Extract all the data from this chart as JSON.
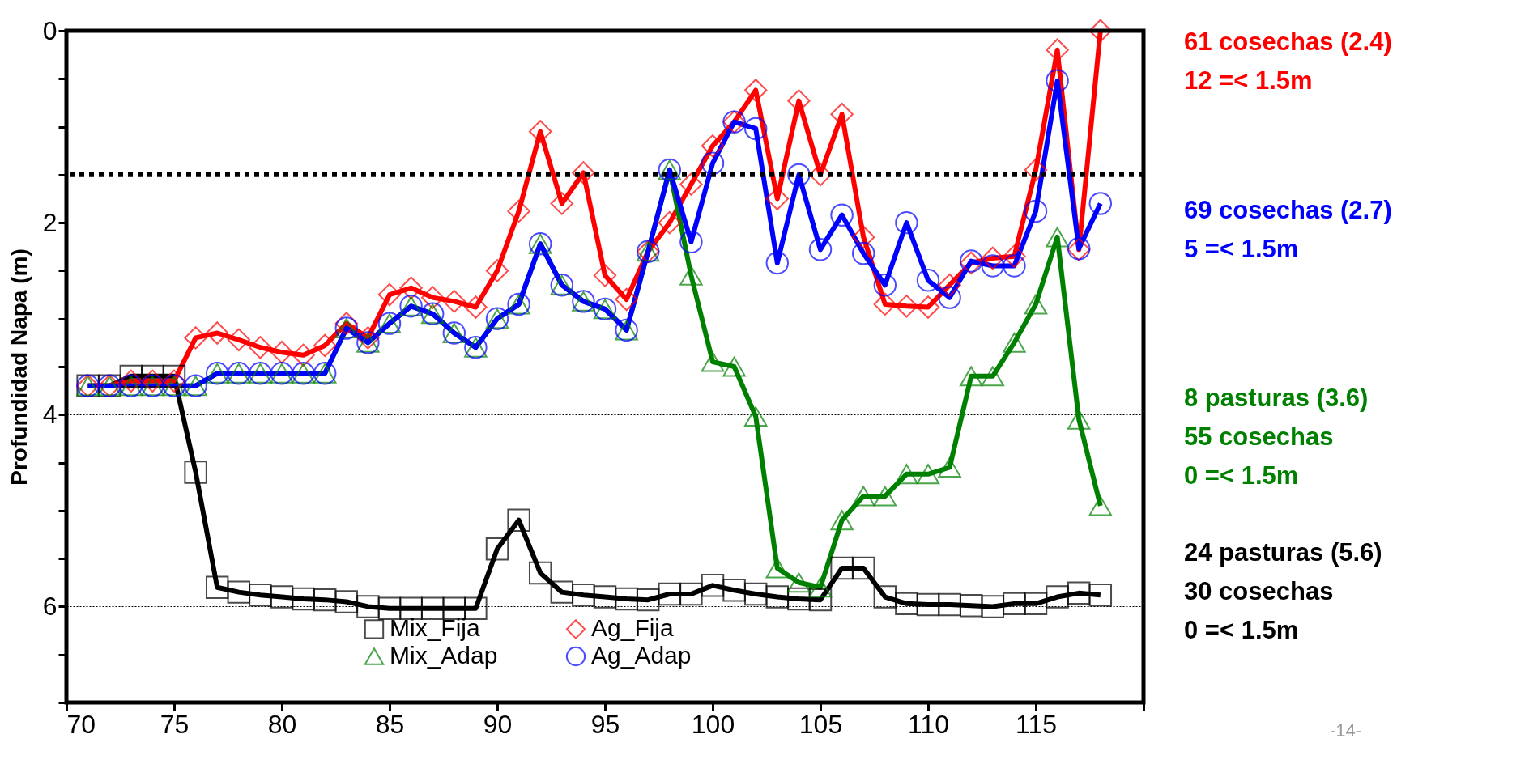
{
  "chart_data": {
    "type": "line",
    "ylabel": "Profundidad Napa (m)",
    "x": [
      71,
      72,
      73,
      74,
      75,
      76,
      77,
      78,
      79,
      80,
      81,
      82,
      83,
      84,
      85,
      86,
      87,
      88,
      89,
      90,
      91,
      92,
      93,
      94,
      95,
      96,
      97,
      98,
      99,
      100,
      101,
      102,
      103,
      104,
      105,
      106,
      107,
      108,
      109,
      110,
      111,
      112,
      113,
      114,
      115,
      116,
      117,
      118
    ],
    "series": [
      {
        "name": "Mix_Fija",
        "color": "#000000",
        "marker": "square",
        "values": [
          3.7,
          3.7,
          3.6,
          3.6,
          3.6,
          4.6,
          5.8,
          5.85,
          5.88,
          5.9,
          5.92,
          5.93,
          5.95,
          6.0,
          6.02,
          6.02,
          6.02,
          6.02,
          6.02,
          5.4,
          5.1,
          5.65,
          5.85,
          5.88,
          5.9,
          5.92,
          5.93,
          5.87,
          5.87,
          5.78,
          5.83,
          5.87,
          5.9,
          5.92,
          5.93,
          5.6,
          5.6,
          5.9,
          5.97,
          5.98,
          5.98,
          5.99,
          6.0,
          5.97,
          5.97,
          5.9,
          5.86,
          5.88
        ]
      },
      {
        "name": "Ag_Fija",
        "color": "#ff0000",
        "marker": "diamond",
        "values": [
          3.7,
          3.7,
          3.65,
          3.65,
          3.65,
          3.2,
          3.15,
          3.22,
          3.3,
          3.35,
          3.38,
          3.28,
          3.05,
          3.2,
          2.75,
          2.68,
          2.78,
          2.82,
          2.88,
          2.5,
          1.88,
          1.05,
          1.8,
          1.48,
          2.55,
          2.8,
          2.3,
          2.0,
          1.6,
          1.2,
          0.95,
          0.62,
          1.75,
          0.73,
          1.5,
          0.87,
          2.15,
          2.85,
          2.87,
          2.88,
          2.65,
          2.42,
          2.37,
          2.35,
          1.45,
          0.2,
          2.28,
          0
        ]
      },
      {
        "name": "Mix_Adap",
        "color": "#008000",
        "marker": "triangle",
        "values": [
          3.7,
          3.7,
          3.7,
          3.7,
          3.7,
          3.7,
          3.57,
          3.57,
          3.57,
          3.57,
          3.57,
          3.57,
          3.1,
          3.25,
          3.05,
          2.87,
          2.95,
          3.15,
          3.3,
          3.0,
          2.85,
          2.22,
          2.65,
          2.82,
          2.9,
          3.12,
          2.3,
          1.45,
          2.55,
          3.45,
          3.5,
          4.02,
          5.6,
          5.75,
          5.8,
          5.1,
          4.85,
          4.85,
          4.62,
          4.62,
          4.55,
          3.6,
          3.6,
          3.25,
          2.85,
          2.15,
          4.05,
          4.95
        ]
      },
      {
        "name": "Ag_Adap",
        "color": "#0000ff",
        "marker": "circle",
        "values": [
          3.7,
          3.7,
          3.7,
          3.7,
          3.7,
          3.7,
          3.57,
          3.57,
          3.57,
          3.57,
          3.57,
          3.57,
          3.1,
          3.25,
          3.05,
          2.87,
          2.95,
          3.15,
          3.3,
          3.0,
          2.85,
          2.22,
          2.65,
          2.82,
          2.9,
          3.12,
          2.3,
          1.45,
          2.2,
          1.38,
          0.95,
          1.02,
          2.42,
          1.5,
          2.28,
          1.92,
          2.32,
          2.65,
          2.0,
          2.6,
          2.78,
          2.4,
          2.45,
          2.45,
          1.88,
          0.52,
          2.27,
          1.8
        ]
      }
    ],
    "xlim": [
      70,
      120
    ],
    "xticks": [
      70,
      75,
      80,
      85,
      90,
      95,
      100,
      105,
      110,
      115,
      {
        "value": 120,
        "label": null
      }
    ],
    "ylim": [
      7,
      0
    ],
    "yticks": [
      0,
      {
        "value": 0.5,
        "label": null
      },
      {
        "value": 1,
        "label": null
      },
      {
        "value": 1.5,
        "label": null
      },
      2,
      {
        "value": 2.5,
        "label": null
      },
      {
        "value": 3,
        "label": null
      },
      {
        "value": 3.5,
        "label": null
      },
      4,
      {
        "value": 4.5,
        "label": null
      },
      {
        "value": 5,
        "label": null
      },
      {
        "value": 5.5,
        "label": null
      },
      6,
      {
        "value": 6.5,
        "label": null
      },
      {
        "value": 7,
        "label": null
      }
    ],
    "grid": "y",
    "legend": "bottom",
    "line_style": "solid",
    "ref_lines": [
      {
        "axis": "y",
        "value": 1.5,
        "label": null,
        "color": "#000000",
        "line_style": "dotted"
      }
    ],
    "annotations": [
      "61 cosechas  (2.4)\n12 =< 1.5m",
      "69 cosechas  (2.7)\n5 =< 1.5m",
      "8 pasturas  (3.6)\n55 cosechas\n  0 =< 1.5m",
      "24 pasturas (5.6)\n30 cosechas\n0 =< 1.5m",
      "-14-"
    ]
  }
}
